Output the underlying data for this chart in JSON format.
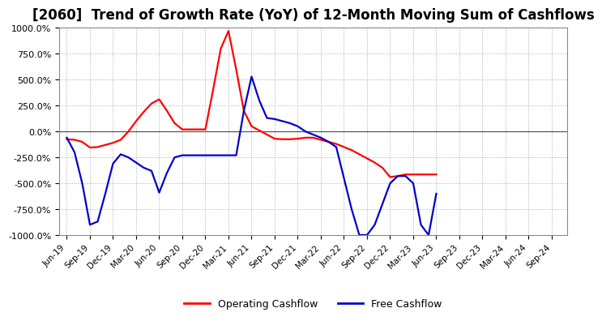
{
  "title": "[2060]  Trend of Growth Rate (YoY) of 12-Month Moving Sum of Cashflows",
  "ylim": [
    -1000,
    1000
  ],
  "yticks": [
    -1000,
    -750,
    -500,
    -250,
    0,
    250,
    500,
    750,
    1000
  ],
  "background_color": "#ffffff",
  "plot_bg_color": "#ffffff",
  "grid_color": "#aaaaaa",
  "title_fontsize": 12,
  "legend_labels": [
    "Operating Cashflow",
    "Free Cashflow"
  ],
  "legend_colors": [
    "#ff0000",
    "#0000cc"
  ],
  "x_tick_labels": [
    "Jun-19",
    "Sep-19",
    "Dec-19",
    "Mar-20",
    "Jun-20",
    "Sep-20",
    "Dec-20",
    "Mar-21",
    "Jun-21",
    "Sep-21",
    "Dec-21",
    "Mar-22",
    "Jun-22",
    "Sep-22",
    "Dec-22",
    "Mar-23",
    "Jun-23",
    "Sep-23",
    "Dec-23",
    "Mar-24",
    "Jun-24",
    "Sep-24"
  ],
  "x_tick_positions": [
    0,
    3,
    6,
    9,
    12,
    15,
    18,
    21,
    24,
    27,
    30,
    33,
    36,
    39,
    42,
    45,
    48,
    51,
    54,
    57,
    60,
    63
  ],
  "operating_cashflow_x": [
    0,
    1,
    2,
    3,
    4,
    5,
    6,
    7,
    8,
    9,
    10,
    11,
    12,
    13,
    14,
    15,
    16,
    17,
    18,
    19,
    20,
    21,
    22,
    23,
    24,
    25,
    26,
    27,
    28,
    29,
    30,
    31,
    32,
    33,
    34,
    35,
    36,
    37,
    38,
    39,
    40,
    41,
    42,
    43,
    44,
    45,
    46,
    47,
    48
  ],
  "operating_cashflow_y": [
    -75,
    -80,
    -100,
    -155,
    -150,
    -130,
    -110,
    -80,
    0,
    100,
    190,
    270,
    310,
    200,
    80,
    20,
    20,
    20,
    20,
    400,
    800,
    970,
    600,
    200,
    50,
    10,
    -30,
    -70,
    -75,
    -75,
    -70,
    -60,
    -60,
    -80,
    -100,
    -120,
    -150,
    -180,
    -220,
    -260,
    -300,
    -350,
    -440,
    -430,
    -415,
    -415,
    -415,
    -415,
    -415
  ],
  "free_cashflow_x": [
    0,
    1,
    2,
    3,
    4,
    5,
    6,
    7,
    8,
    9,
    10,
    11,
    12,
    13,
    14,
    15,
    16,
    17,
    18,
    19,
    20,
    21,
    22,
    23,
    24,
    25,
    26,
    27,
    28,
    29,
    30,
    31,
    32,
    33,
    34,
    35,
    36,
    37,
    38,
    39,
    40,
    41,
    42,
    43,
    44,
    45,
    46,
    47,
    48
  ],
  "free_cashflow_y": [
    -60,
    -200,
    -500,
    -900,
    -870,
    -600,
    -310,
    -220,
    -250,
    -300,
    -350,
    -380,
    -590,
    -400,
    -250,
    -230,
    -230,
    -230,
    -230,
    -230,
    -230,
    -230,
    -230,
    200,
    530,
    300,
    130,
    120,
    100,
    80,
    50,
    0,
    -30,
    -60,
    -100,
    -150,
    -450,
    -750,
    -1000,
    -1000,
    -900,
    -700,
    -500,
    -430,
    -430,
    -500,
    -900,
    -1000,
    -600
  ]
}
